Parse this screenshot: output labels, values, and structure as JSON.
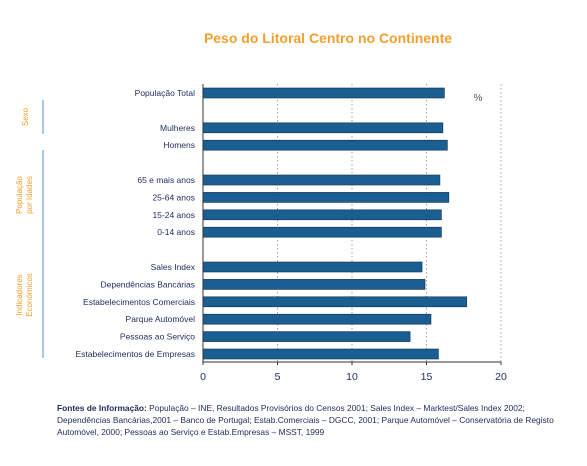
{
  "chart_data": {
    "type": "bar",
    "orientation": "horizontal",
    "title": "Peso do Litoral Centro no Continente",
    "unit": "%",
    "categories": [
      "População Total",
      "Mulheres",
      "Homens",
      "65 e mais anos",
      "25-64 anos",
      "15-24 anos",
      "0-14 anos",
      "Sales Index",
      "Dependências Bancárias",
      "Estabelecimentos Comerciais",
      "Parque Automóvel",
      "Pessoas ao Serviço",
      "Estabelecimentos de Empresas"
    ],
    "values": [
      16.2,
      16.1,
      16.4,
      15.9,
      16.5,
      16.0,
      16.0,
      14.7,
      14.9,
      17.7,
      15.3,
      13.9,
      15.8
    ],
    "groups": [
      {
        "label": "Sexo",
        "categories": [
          "Mulheres",
          "Homens"
        ]
      },
      {
        "label": "População por Idades",
        "categories": [
          "65 e mais anos",
          "25-64 anos",
          "15-24 anos",
          "0-14 anos"
        ]
      },
      {
        "label": "Indicadores Económicos",
        "categories": [
          "Sales Index",
          "Dependências Bancárias",
          "Estabelecimentos Comerciais",
          "Parque Automóvel",
          "Pessoas ao Serviço",
          "Estabelecimentos de Empresas"
        ]
      }
    ],
    "xlim": [
      0,
      20
    ],
    "xticks": [
      0,
      5,
      10,
      15,
      20
    ],
    "grid": "vertical dotted",
    "legend": "none"
  },
  "colors": {
    "bar": "#1a5e92",
    "bar_border": "#0d2f4f",
    "title": "#f0a030",
    "text": "#1f2a5a",
    "group_line": "#a8c8e8",
    "grid": "#8a8a8a"
  },
  "footer": {
    "label": "Fontes de Informação:",
    "text": " População – INE, Resultados Provisórios do Censos 2001; Sales Index – Marktest/Sales Index 2002; Dependências Bancárias,2001 – Banco de Portugal; Estab.Comerciais – DGCC, 2001; Parque Automóvel – Conservatória de Registo Automóvel, 2000; Pessoas ao Serviço e Estab.Empresas – MSST, 1999"
  }
}
